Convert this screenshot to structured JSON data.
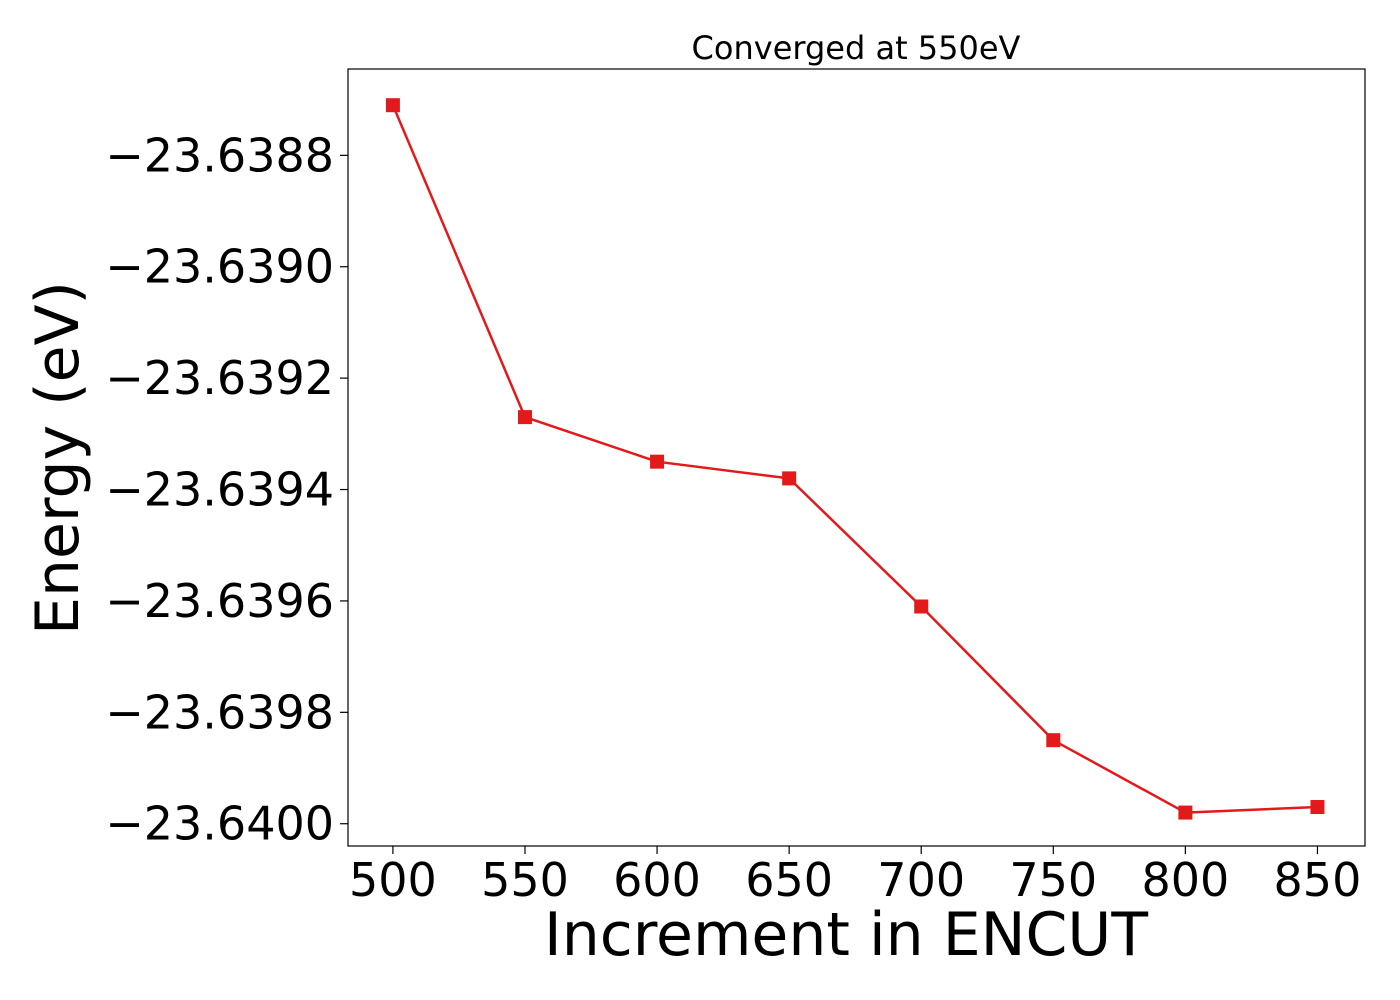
{
  "chart_data": {
    "type": "line",
    "title": "Converged at 550eV",
    "xlabel": "Increment in ENCUT",
    "ylabel": "Energy (eV)",
    "x": [
      500,
      550,
      600,
      650,
      700,
      750,
      800,
      850
    ],
    "series": [
      {
        "values": [
          -23.63871,
          -23.63927,
          -23.63935,
          -23.63938,
          -23.63961,
          -23.63985,
          -23.63998,
          -23.63997
        ],
        "color": "#e31a1c",
        "marker": "square"
      }
    ],
    "xlim": [
      483,
      868
    ],
    "ylim": [
      -23.64004,
      -23.638645
    ],
    "xticks": [
      500,
      550,
      600,
      650,
      700,
      750,
      800,
      850
    ],
    "xtick_labels": [
      "500",
      "550",
      "600",
      "650",
      "700",
      "750",
      "800",
      "850"
    ],
    "yticks": [
      -23.6388,
      -23.639,
      -23.6392,
      -23.6394,
      -23.6396,
      -23.6398,
      -23.64
    ],
    "ytick_labels": [
      "−23.6388",
      "−23.6390",
      "−23.6392",
      "−23.6394",
      "−23.6396",
      "−23.6398",
      "−23.6400"
    ],
    "grid": false,
    "legend": "none"
  }
}
